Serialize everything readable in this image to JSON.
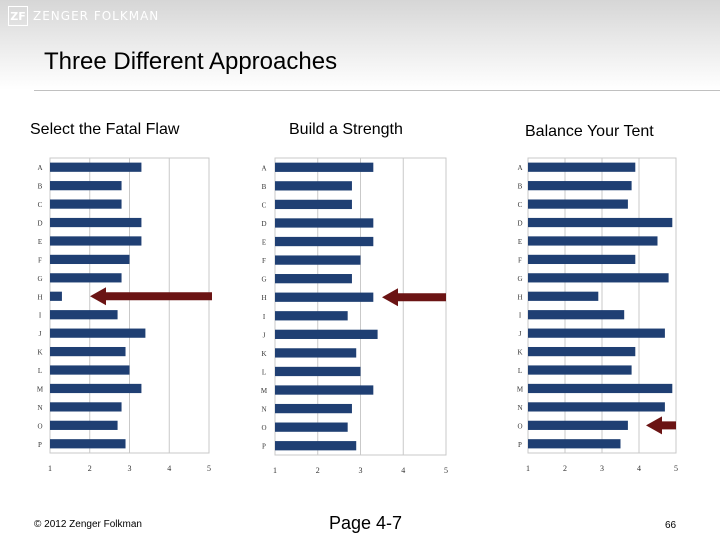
{
  "brand": {
    "mark": "ZF",
    "name": "ZENGER FOLKMAN"
  },
  "page_title": "Three Different Approaches",
  "footer": {
    "copyright": "© 2012 Zenger Folkman",
    "page_label": "Page 4-7",
    "slide_number": "66"
  },
  "colors": {
    "bar": "#1f3f73",
    "arrow": "#6b1414",
    "grid": "#c9c9c9"
  },
  "chart_data": [
    {
      "type": "bar",
      "orientation": "horizontal",
      "title": "Select the Fatal Flaw",
      "categories": [
        "A",
        "B",
        "C",
        "D",
        "E",
        "F",
        "G",
        "H",
        "I",
        "J",
        "K",
        "L",
        "M",
        "N",
        "O",
        "P"
      ],
      "values": [
        3.3,
        2.8,
        2.8,
        3.3,
        3.3,
        3.0,
        2.8,
        1.3,
        2.7,
        3.4,
        2.9,
        3.0,
        3.3,
        2.8,
        2.7,
        2.9
      ],
      "xlim": [
        1,
        5
      ],
      "xticks": [
        "1",
        "2",
        "3",
        "4",
        "5"
      ],
      "grid": true,
      "highlight_category": "H"
    },
    {
      "type": "bar",
      "orientation": "horizontal",
      "title": "Build a Strength",
      "categories": [
        "A",
        "B",
        "C",
        "D",
        "E",
        "F",
        "G",
        "H",
        "I",
        "J",
        "K",
        "L",
        "M",
        "N",
        "O",
        "P"
      ],
      "values": [
        3.3,
        2.8,
        2.8,
        3.3,
        3.3,
        3.0,
        2.8,
        3.3,
        2.7,
        3.4,
        2.9,
        3.0,
        3.3,
        2.8,
        2.7,
        2.9
      ],
      "xlim": [
        1,
        5
      ],
      "xticks": [
        "1",
        "2",
        "3",
        "4",
        "5"
      ],
      "grid": true,
      "highlight_category": "H"
    },
    {
      "type": "bar",
      "orientation": "horizontal",
      "title": "Balance Your Tent",
      "categories": [
        "A",
        "B",
        "C",
        "D",
        "E",
        "F",
        "G",
        "H",
        "I",
        "J",
        "K",
        "L",
        "M",
        "N",
        "O",
        "P"
      ],
      "values": [
        3.9,
        3.8,
        3.7,
        4.9,
        4.5,
        3.9,
        4.8,
        2.9,
        3.6,
        4.7,
        3.9,
        3.8,
        4.9,
        4.7,
        3.7,
        3.5
      ],
      "xlim": [
        1,
        5
      ],
      "xticks": [
        "1",
        "2",
        "3",
        "4",
        "5"
      ],
      "grid": true,
      "highlight_category": "O"
    }
  ]
}
